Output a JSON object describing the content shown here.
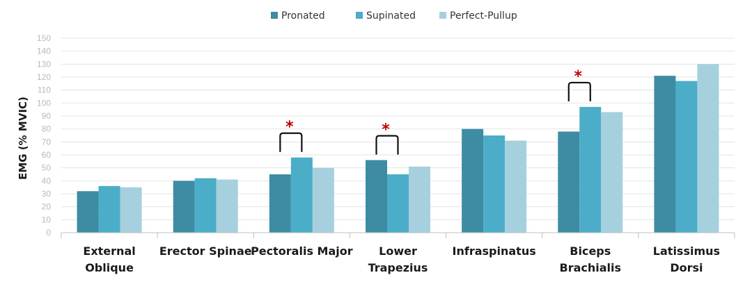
{
  "chart_data": {
    "type": "bar",
    "ylabel": "EMG (% MVIC)",
    "ylim": [
      0,
      150
    ],
    "ytick_step": 10,
    "grid": true,
    "legend_position": "top-center",
    "categories": [
      [
        "External",
        "Oblique"
      ],
      [
        "Erector Spinae"
      ],
      [
        "Pectoralis Major"
      ],
      [
        "Lower",
        "Trapezius"
      ],
      [
        "Infraspinatus"
      ],
      [
        "Biceps",
        "Brachialis"
      ],
      [
        "Latissimus",
        "Dorsi"
      ]
    ],
    "series": [
      {
        "name": "Pronated",
        "color": "#3d8ca3",
        "values": [
          32,
          40,
          45,
          56,
          80,
          78,
          121
        ]
      },
      {
        "name": "Supinated",
        "color": "#4badc8",
        "values": [
          36,
          42,
          58,
          45,
          75,
          97,
          117
        ]
      },
      {
        "name": "Perfect-Pullup",
        "color": "#a6d0de",
        "values": [
          35,
          41,
          50,
          51,
          71,
          93,
          130
        ]
      }
    ],
    "significance": [
      {
        "category_index": 2,
        "series": [
          0,
          1
        ],
        "label": "*"
      },
      {
        "category_index": 3,
        "series": [
          0,
          1
        ],
        "label": "*"
      },
      {
        "category_index": 5,
        "series": [
          0,
          1
        ],
        "label": "*"
      }
    ]
  }
}
